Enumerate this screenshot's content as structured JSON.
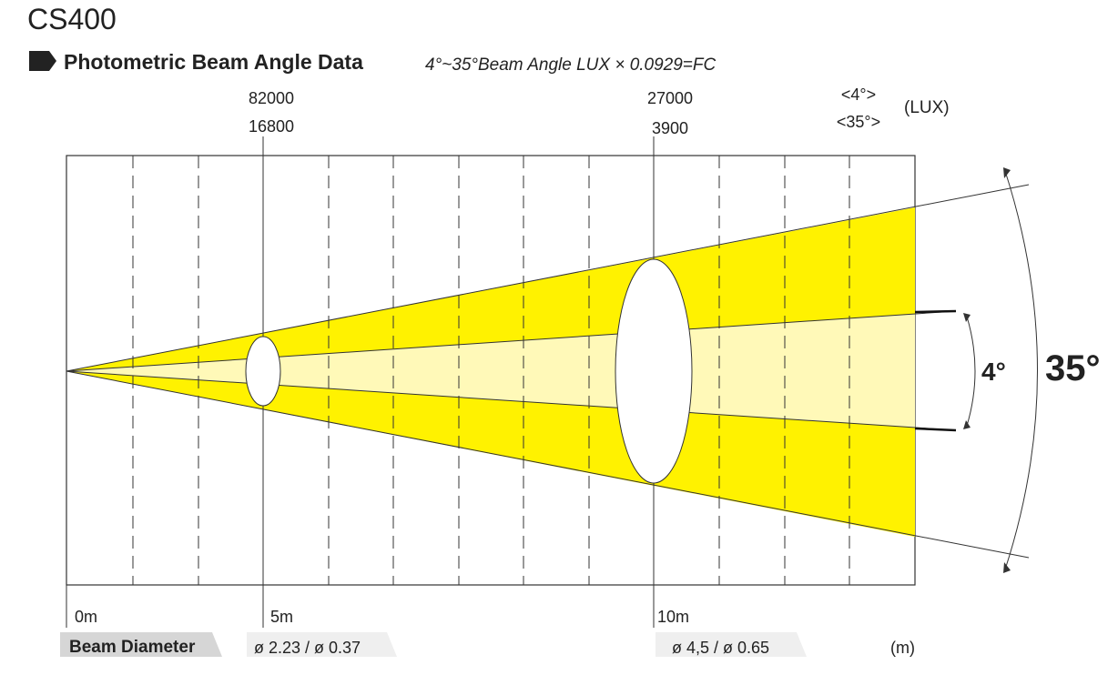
{
  "title": "CS400",
  "section": {
    "heading": "Photometric Beam Angle Data",
    "note": "4°~35°Beam Angle  LUX × 0.0929=FC"
  },
  "legend": {
    "narrow": "<4°>",
    "wide": "<35°>",
    "unit": "(LUX)"
  },
  "origin": "0m",
  "points": [
    {
      "distance": "5m",
      "lux_narrow": "82000",
      "lux_wide": "16800",
      "diameter": "ø 2.23 / ø 0.37"
    },
    {
      "distance": "10m",
      "lux_narrow": "27000",
      "lux_wide": "3900",
      "diameter": "ø 4,5 / ø 0.65"
    }
  ],
  "angles": {
    "narrow": "4°",
    "wide": "35°"
  },
  "beam_diameter_label": "Beam Diameter",
  "distance_unit": "(m)"
}
